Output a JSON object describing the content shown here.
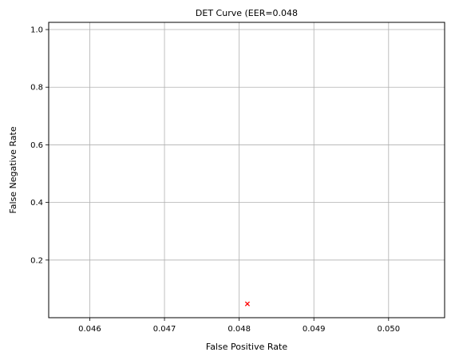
{
  "chart_data": {
    "type": "scatter",
    "title": "DET Curve (EER=0.048",
    "xlabel": "False Positive Rate",
    "ylabel": "False Negative Rate",
    "xlim": [
      0.04545,
      0.05075
    ],
    "ylim": [
      0.0,
      1.025
    ],
    "xticks": [
      "0.046",
      "0.047",
      "0.048",
      "0.049",
      "0.050"
    ],
    "yticks": [
      "0.2",
      "0.4",
      "0.6",
      "0.8",
      "1.0"
    ],
    "grid": true,
    "series": [
      {
        "marker": "x",
        "color": "#ff0000",
        "points": [
          {
            "x": 0.04811,
            "y": 0.048
          }
        ]
      }
    ]
  }
}
